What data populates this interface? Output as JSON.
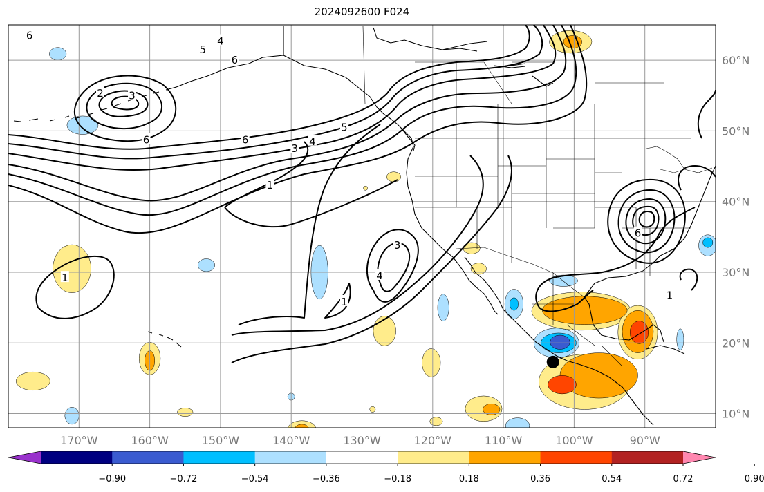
{
  "title": "2024092600 F024",
  "axes": {
    "lon_min": -180,
    "lon_max": -80,
    "lat_min": 8,
    "lat_max": 65,
    "lon_ticks": [
      {
        "value": -170,
        "label": "170°W"
      },
      {
        "value": -160,
        "label": "160°W"
      },
      {
        "value": -150,
        "label": "150°W"
      },
      {
        "value": -140,
        "label": "140°W"
      },
      {
        "value": -130,
        "label": "130°W"
      },
      {
        "value": -120,
        "label": "120°W"
      },
      {
        "value": -110,
        "label": "110°W"
      },
      {
        "value": -100,
        "label": "100°W"
      },
      {
        "value": -90,
        "label": "90°W"
      }
    ],
    "lat_ticks": [
      {
        "value": 60,
        "label": "60°N"
      },
      {
        "value": 50,
        "label": "50°N"
      },
      {
        "value": 40,
        "label": "40°N"
      },
      {
        "value": 30,
        "label": "30°N"
      },
      {
        "value": 20,
        "label": "20°N"
      },
      {
        "value": 10,
        "label": "10°N"
      }
    ],
    "grid": true
  },
  "colorbar": {
    "colors": [
      "#9932cc",
      "#000080",
      "#3a5bd0",
      "#00bfff",
      "#ade0ff",
      "#ffffff",
      "#ffec8b",
      "#ffa500",
      "#ff4500",
      "#b22222",
      "#ff88b0"
    ],
    "labels": [
      "−0.90",
      "−0.72",
      "−0.54",
      "−0.36",
      "−0.18",
      "0.18",
      "0.36",
      "0.54",
      "0.72",
      "0.90"
    ],
    "extend": "both"
  },
  "marker": {
    "lon": -103,
    "lat": 17.3,
    "color": "#000000"
  },
  "contour_labels": [
    {
      "text": "6",
      "lon": -177,
      "lat": 63.5
    },
    {
      "text": "4",
      "lon": -150,
      "lat": 62.7
    },
    {
      "text": "5",
      "lon": -152.5,
      "lat": 61.5
    },
    {
      "text": "6",
      "lon": -148,
      "lat": 60
    },
    {
      "text": "2",
      "lon": -167,
      "lat": 55.3
    },
    {
      "text": "3",
      "lon": -162.5,
      "lat": 55
    },
    {
      "text": "6",
      "lon": -160.5,
      "lat": 48.7
    },
    {
      "text": "6",
      "lon": -146.5,
      "lat": 48.7
    },
    {
      "text": "3",
      "lon": -139.5,
      "lat": 47.5
    },
    {
      "text": "4",
      "lon": -137,
      "lat": 48.5
    },
    {
      "text": "5",
      "lon": -132.5,
      "lat": 50.5
    },
    {
      "text": "1",
      "lon": -143,
      "lat": 42.3
    },
    {
      "text": "3",
      "lon": -125,
      "lat": 33.8
    },
    {
      "text": "4",
      "lon": -127.5,
      "lat": 29.5
    },
    {
      "text": "1",
      "lon": -172,
      "lat": 29.2
    },
    {
      "text": "1",
      "lon": -132.5,
      "lat": 25.8
    },
    {
      "text": "6",
      "lon": -91,
      "lat": 35.5
    },
    {
      "text": "1",
      "lon": -86.5,
      "lat": 26.7
    }
  ],
  "anomaly_patches": [
    {
      "lon": -173,
      "lat": 60.9,
      "rx": 1.2,
      "ry": 0.9,
      "color": "#ade0ff"
    },
    {
      "lon": -169.5,
      "lat": 50.8,
      "rx": 2.2,
      "ry": 1.3,
      "color": "#ade0ff"
    },
    {
      "lon": -171,
      "lat": 30.5,
      "rx": 2.7,
      "ry": 3.4,
      "color": "#ffec8b"
    },
    {
      "lon": -176.5,
      "lat": 14.6,
      "rx": 2.4,
      "ry": 1.3,
      "color": "#ffec8b"
    },
    {
      "lon": -171,
      "lat": 9.7,
      "rx": 1.0,
      "ry": 1.2,
      "color": "#ade0ff"
    },
    {
      "lon": -160,
      "lat": 17.8,
      "rx": 1.5,
      "ry": 2.3,
      "color": "#ffec8b"
    },
    {
      "lon": -160,
      "lat": 17.5,
      "rx": 0.7,
      "ry": 1.4,
      "color": "#ffa500"
    },
    {
      "lon": -155,
      "lat": 10.2,
      "rx": 1.1,
      "ry": 0.6,
      "color": "#ffec8b"
    },
    {
      "lon": -152,
      "lat": 31,
      "rx": 1.2,
      "ry": 0.9,
      "color": "#ade0ff"
    },
    {
      "lon": -136,
      "lat": 30,
      "rx": 1.2,
      "ry": 3.8,
      "color": "#ade0ff"
    },
    {
      "lon": -140,
      "lat": 12.4,
      "rx": 0.5,
      "ry": 0.5,
      "color": "#ade0ff"
    },
    {
      "lon": -138.5,
      "lat": 7.8,
      "rx": 2.0,
      "ry": 1.2,
      "color": "#ffec8b"
    },
    {
      "lon": -138.5,
      "lat": 7.8,
      "rx": 1.0,
      "ry": 0.7,
      "color": "#ffa500"
    },
    {
      "lon": -128.5,
      "lat": 10.6,
      "rx": 0.4,
      "ry": 0.4,
      "color": "#ffec8b"
    },
    {
      "lon": -126.8,
      "lat": 21.7,
      "rx": 1.6,
      "ry": 2.1,
      "color": "#ffec8b"
    },
    {
      "lon": -125.5,
      "lat": 43.5,
      "rx": 1.0,
      "ry": 0.7,
      "color": "#ffec8b"
    },
    {
      "lon": -129.5,
      "lat": 41.9,
      "rx": 0.3,
      "ry": 0.3,
      "color": "#ffec8b"
    },
    {
      "lon": -120.2,
      "lat": 17.2,
      "rx": 1.3,
      "ry": 2.0,
      "color": "#ffec8b"
    },
    {
      "lon": -118.5,
      "lat": 25,
      "rx": 0.8,
      "ry": 1.9,
      "color": "#ade0ff"
    },
    {
      "lon": -113.5,
      "lat": 30.5,
      "rx": 1.1,
      "ry": 0.8,
      "color": "#ffec8b"
    },
    {
      "lon": -114.5,
      "lat": 33.4,
      "rx": 1.2,
      "ry": 0.8,
      "color": "#ffec8b"
    },
    {
      "lon": -108.5,
      "lat": 25.5,
      "rx": 1.3,
      "ry": 2.1,
      "color": "#ade0ff"
    },
    {
      "lon": -108.5,
      "lat": 25.5,
      "rx": 0.6,
      "ry": 0.9,
      "color": "#00bfff"
    },
    {
      "lon": -112.8,
      "lat": 10.7,
      "rx": 2.6,
      "ry": 1.8,
      "color": "#ffec8b"
    },
    {
      "lon": -111.7,
      "lat": 10.6,
      "rx": 1.2,
      "ry": 0.8,
      "color": "#ffa500"
    },
    {
      "lon": -119.5,
      "lat": 8.9,
      "rx": 0.9,
      "ry": 0.6,
      "color": "#ffec8b"
    },
    {
      "lon": -108,
      "lat": 8.3,
      "rx": 1.7,
      "ry": 1.1,
      "color": "#ade0ff"
    },
    {
      "lon": -101.5,
      "lat": 28.8,
      "rx": 2.0,
      "ry": 0.8,
      "color": "#ade0ff"
    },
    {
      "lon": -102.5,
      "lat": 20,
      "rx": 3.2,
      "ry": 2.1,
      "color": "#ade0ff"
    },
    {
      "lon": -102.2,
      "lat": 20,
      "rx": 2.5,
      "ry": 1.4,
      "color": "#00bfff"
    },
    {
      "lon": -102,
      "lat": 20.1,
      "rx": 1.4,
      "ry": 1.0,
      "color": "#3a5bd0"
    },
    {
      "lon": -99,
      "lat": 24.5,
      "rx": 7.0,
      "ry": 2.7,
      "color": "#ffec8b"
    },
    {
      "lon": -91,
      "lat": 21.5,
      "rx": 2.8,
      "ry": 3.8,
      "color": "#ffec8b"
    },
    {
      "lon": -98.5,
      "lat": 24.6,
      "rx": 6.0,
      "ry": 2.0,
      "color": "#ffa500"
    },
    {
      "lon": -91,
      "lat": 21.6,
      "rx": 2.2,
      "ry": 3.0,
      "color": "#ffa500"
    },
    {
      "lon": -90.8,
      "lat": 21.5,
      "rx": 1.3,
      "ry": 1.6,
      "color": "#ff4500"
    },
    {
      "lon": -98.5,
      "lat": 14.5,
      "rx": 6.5,
      "ry": 3.9,
      "color": "#ffec8b"
    },
    {
      "lon": -96.5,
      "lat": 15.4,
      "rx": 5.5,
      "ry": 3.2,
      "color": "#ffa500"
    },
    {
      "lon": -101.7,
      "lat": 14.1,
      "rx": 2.0,
      "ry": 1.3,
      "color": "#ff4500"
    },
    {
      "lon": -100.5,
      "lat": 62.6,
      "rx": 3.0,
      "ry": 1.6,
      "color": "#ffec8b"
    },
    {
      "lon": -100.2,
      "lat": 62.6,
      "rx": 1.3,
      "ry": 0.9,
      "color": "#ffa500"
    },
    {
      "lon": -85,
      "lat": 20.5,
      "rx": 0.5,
      "ry": 1.5,
      "color": "#ade0ff"
    },
    {
      "lon": -81.1,
      "lat": 33.8,
      "rx": 1.3,
      "ry": 1.5,
      "color": "#ade0ff"
    },
    {
      "lon": -81.1,
      "lat": 34.2,
      "rx": 0.7,
      "ry": 0.7,
      "color": "#00bfff"
    }
  ]
}
